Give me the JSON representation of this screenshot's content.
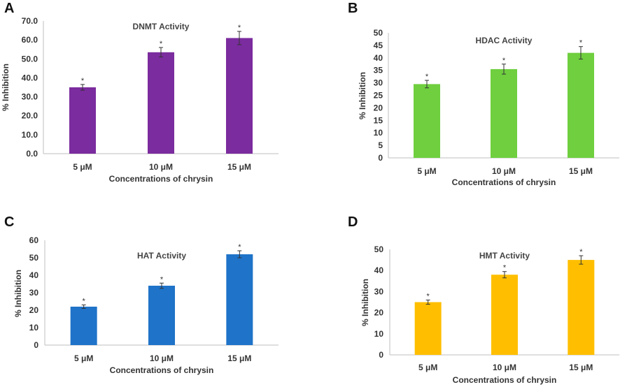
{
  "colors": {
    "axis": "#bfbfbf",
    "error": "#333333"
  },
  "chart_data": [
    {
      "panel": "A",
      "type": "bar",
      "title": "DNMT Activity",
      "categories": [
        "5 μM",
        "10 μM",
        "15 μM"
      ],
      "values": [
        35,
        53.5,
        61
      ],
      "errors": [
        1.5,
        2.5,
        3.5
      ],
      "annotations": [
        "*",
        "*",
        "*"
      ],
      "xlabel": "Concentrations of chrysin",
      "ylabel": "% Inhibition",
      "ylim": [
        0,
        70
      ],
      "yticks": [
        "0.0",
        "10.0",
        "20.0",
        "30.0",
        "40.0",
        "50.0",
        "60.0",
        "70.0"
      ],
      "color": "#7b2c9e",
      "grid": false
    },
    {
      "panel": "B",
      "type": "bar",
      "title": "HDAC Activity",
      "categories": [
        "5 μM",
        "10 μM",
        "15 μM"
      ],
      "values": [
        29.5,
        35.5,
        42
      ],
      "errors": [
        1.5,
        2,
        2.5
      ],
      "annotations": [
        "*",
        "*",
        "*"
      ],
      "xlabel": "Concentrations of chrysin",
      "ylabel": "% Inhibition",
      "ylim": [
        0,
        50
      ],
      "yticks": [
        "0",
        "5",
        "10",
        "15",
        "20",
        "25",
        "30",
        "35",
        "40",
        "45",
        "50"
      ],
      "color": "#6fcf3f",
      "grid": false
    },
    {
      "panel": "C",
      "type": "bar",
      "title": "HAT Activity",
      "categories": [
        "5 μM",
        "10 μM",
        "15 μM"
      ],
      "values": [
        22,
        34,
        52
      ],
      "errors": [
        1,
        1.5,
        2
      ],
      "annotations": [
        "*",
        "*",
        "*"
      ],
      "xlabel": "Concentrations of chrysin",
      "ylabel": "% Inhibition",
      "ylim": [
        0,
        60
      ],
      "yticks": [
        "0",
        "10",
        "20",
        "30",
        "40",
        "50",
        "60"
      ],
      "color": "#1f73c8",
      "grid": false
    },
    {
      "panel": "D",
      "type": "bar",
      "title": "HMT Activity",
      "categories": [
        "5 μM",
        "10 μM",
        "15 μM"
      ],
      "values": [
        25,
        38,
        45
      ],
      "errors": [
        1,
        1.5,
        2
      ],
      "annotations": [
        "*",
        "*",
        "*"
      ],
      "xlabel": "Concentrations of chrysin",
      "ylabel": "% Inhibition",
      "ylim": [
        0,
        50
      ],
      "yticks": [
        "0",
        "10",
        "20",
        "30",
        "40",
        "50"
      ],
      "color": "#ffbf00",
      "grid": false
    }
  ]
}
